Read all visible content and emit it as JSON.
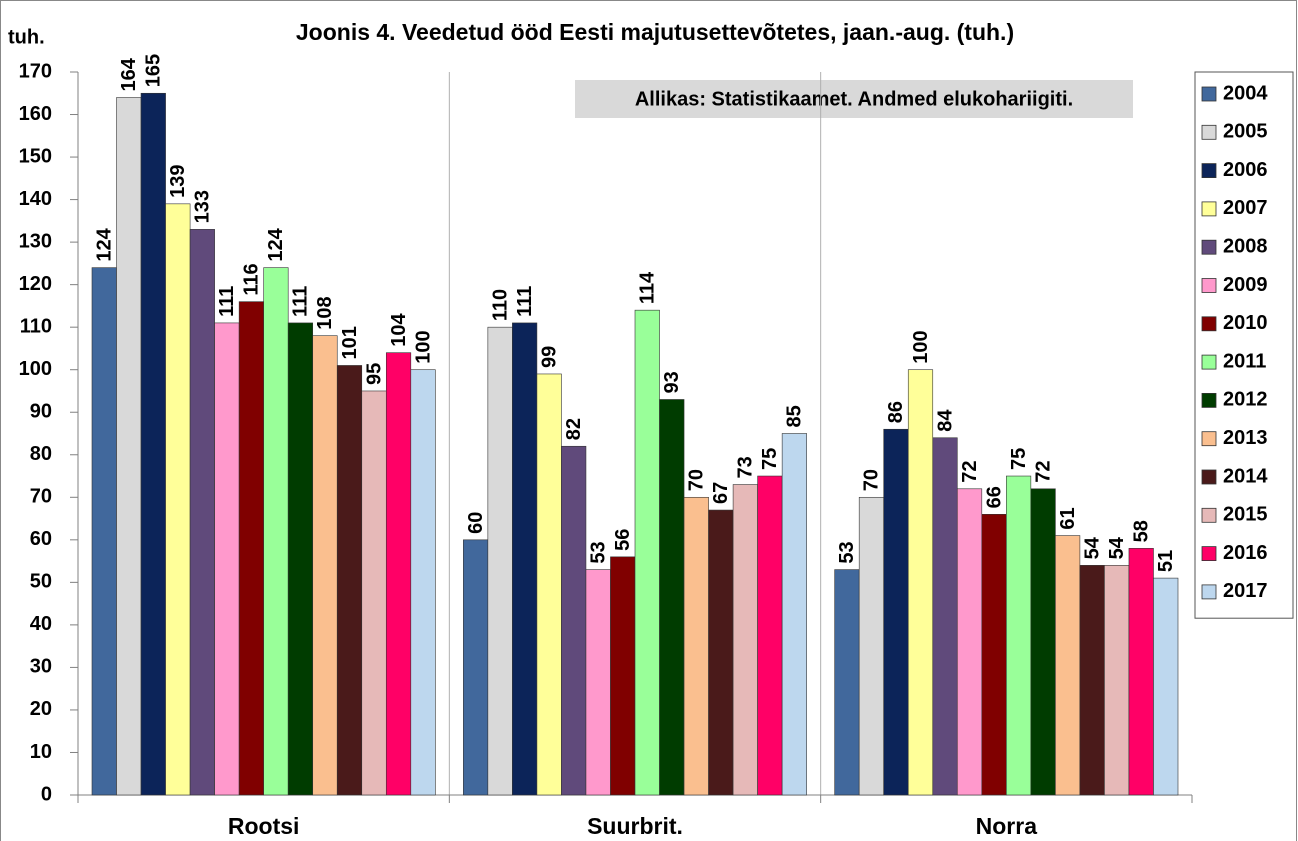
{
  "chart_data": {
    "type": "bar",
    "title": "Joonis 4. Veedetud ööd Eesti majutusettevõtetes, jaan.-aug. (tuh.)",
    "y_label": "tuh.",
    "annotation": "Allikas: Statistikaamet. Andmed elukohariigiti.",
    "categories": [
      "Rootsi",
      "Suurbrit.",
      "Norra"
    ],
    "series": [
      {
        "name": "2004",
        "color": "#41689c",
        "values": [
          124,
          60,
          53
        ]
      },
      {
        "name": "2005",
        "color": "#d9d9d9",
        "values": [
          164,
          110,
          70
        ]
      },
      {
        "name": "2006",
        "color": "#0c2459",
        "values": [
          165,
          111,
          86
        ]
      },
      {
        "name": "2007",
        "color": "#ffff99",
        "values": [
          139,
          99,
          100
        ]
      },
      {
        "name": "2008",
        "color": "#604a7b",
        "values": [
          133,
          82,
          84
        ]
      },
      {
        "name": "2009",
        "color": "#ff99cc",
        "values": [
          111,
          53,
          72
        ]
      },
      {
        "name": "2010",
        "color": "#800000",
        "values": [
          116,
          56,
          66
        ]
      },
      {
        "name": "2011",
        "color": "#99ff99",
        "values": [
          124,
          114,
          75
        ]
      },
      {
        "name": "2012",
        "color": "#003c00",
        "values": [
          111,
          93,
          72
        ]
      },
      {
        "name": "2013",
        "color": "#fabf8f",
        "values": [
          108,
          70,
          61
        ]
      },
      {
        "name": "2014",
        "color": "#4a1a1a",
        "values": [
          101,
          67,
          54
        ]
      },
      {
        "name": "2015",
        "color": "#e6b9b8",
        "values": [
          95,
          73,
          54
        ]
      },
      {
        "name": "2016",
        "color": "#ff0066",
        "values": [
          104,
          75,
          58
        ]
      },
      {
        "name": "2017",
        "color": "#bdd7ee",
        "values": [
          100,
          85,
          51
        ]
      }
    ],
    "ylim": [
      0,
      170
    ],
    "yticks": [
      0,
      10,
      20,
      30,
      40,
      50,
      60,
      70,
      80,
      90,
      100,
      110,
      120,
      130,
      140,
      150,
      160,
      170
    ],
    "legend": "right"
  }
}
